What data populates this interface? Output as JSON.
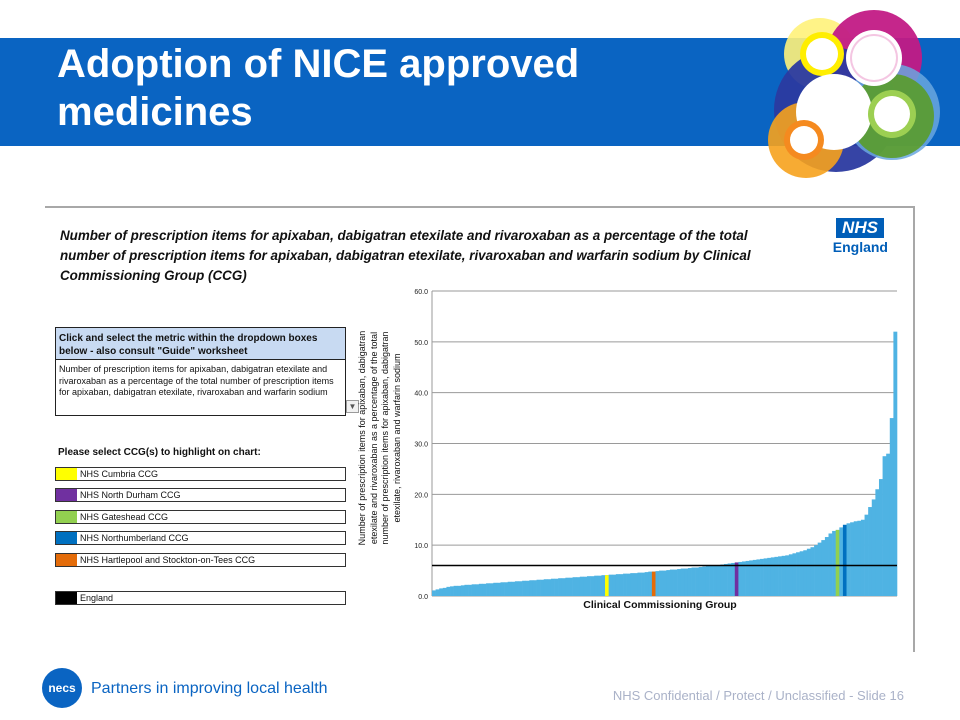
{
  "slide": {
    "title": "Adoption of NICE approved medicines",
    "footer_tagline": "Partners in improving local health",
    "footer_classification": "NHS Confidential / Protect / Unclassified - Slide 16",
    "footer_logo_text": "necs",
    "brand_color": "#0a64c2"
  },
  "panel": {
    "chart_title": "Number of prescription items for apixaban, dabigatran etexilate and rivaroxaban as a percentage of the total number of prescription items for apixaban, dabigatran etexilate, rivaroxaban and warfarin sodium by Clinical Commissioning Group (CCG)",
    "nhs_logo_box": "NHS",
    "nhs_logo_text": "England",
    "instructions": "Click and select the metric within the dropdown boxes below - also consult \"Guide\" worksheet",
    "dropdown_value": "Number of prescription items for apixaban, dabigatran etexilate and rivaroxaban as a percentage of the total number of prescription items for apixaban, dabigatran etexilate, rivaroxaban and warfarin sodium",
    "dropdown_arrow": "▼",
    "select_label": "Please select CCG(s) to highlight on chart:",
    "ccgs": [
      {
        "name": "NHS Cumbria CCG",
        "color": "#ffff00"
      },
      {
        "name": "NHS North Durham CCG",
        "color": "#7030a0"
      },
      {
        "name": "NHS Gateshead CCG",
        "color": "#92d050"
      },
      {
        "name": "NHS Northumberland CCG",
        "color": "#0070c0"
      },
      {
        "name": "NHS Hartlepool and Stockton-on-Tees CCG",
        "color": "#e46c0a"
      }
    ],
    "benchmark": {
      "name": "England",
      "color": "#000000"
    }
  },
  "chart_data": {
    "type": "bar",
    "title": "Number of prescription items for apixaban, dabigatran etexilate and rivaroxaban as a percentage of the total number of prescription items for apixaban, dabigatran etexilate, rivaroxaban and warfarin sodium by Clinical Commissioning Group (CCG)",
    "xlabel": "Clinical Commissioning Group",
    "ylabel": "Number of prescription items for apixaban, dabigatran etexilate and rivaroxaban as a percentage of the total number of prescription items for apixaban, dabigatran etexilate, rivaroxaban and warfarin sodium",
    "ylim": [
      0,
      60
    ],
    "yticks": [
      "0.0",
      "10.0",
      "20.0",
      "30.0",
      "40.0",
      "50.0",
      "60.0"
    ],
    "grid": true,
    "bar_color": "#4fb3e3",
    "values": [
      1.1,
      1.3,
      1.5,
      1.6,
      1.8,
      1.9,
      2.0,
      2.0,
      2.1,
      2.2,
      2.2,
      2.3,
      2.3,
      2.4,
      2.4,
      2.5,
      2.5,
      2.6,
      2.6,
      2.7,
      2.7,
      2.8,
      2.8,
      2.9,
      2.9,
      3.0,
      3.0,
      3.1,
      3.1,
      3.2,
      3.2,
      3.3,
      3.3,
      3.4,
      3.4,
      3.5,
      3.5,
      3.6,
      3.6,
      3.7,
      3.7,
      3.8,
      3.8,
      3.9,
      3.9,
      4.0,
      4.0,
      4.1,
      4.1,
      4.2,
      4.2,
      4.3,
      4.3,
      4.4,
      4.4,
      4.5,
      4.5,
      4.6,
      4.6,
      4.7,
      4.8,
      4.8,
      4.9,
      5.0,
      5.0,
      5.1,
      5.2,
      5.2,
      5.3,
      5.4,
      5.4,
      5.5,
      5.6,
      5.6,
      5.7,
      5.8,
      5.9,
      5.9,
      6.0,
      6.1,
      6.2,
      6.3,
      6.4,
      6.5,
      6.6,
      6.7,
      6.8,
      6.9,
      7.0,
      7.1,
      7.2,
      7.3,
      7.4,
      7.5,
      7.6,
      7.7,
      7.8,
      7.9,
      8.0,
      8.2,
      8.4,
      8.6,
      8.8,
      9.0,
      9.3,
      9.6,
      10.0,
      10.5,
      11.0,
      11.6,
      12.3,
      12.8,
      13.0,
      13.5,
      14.0,
      14.3,
      14.5,
      14.7,
      14.8,
      15.0,
      16.0,
      17.5,
      19.0,
      21.0,
      23.0,
      27.5,
      28.0,
      35.0,
      52.0
    ],
    "highlights": [
      {
        "name": "NHS Cumbria CCG",
        "index": 48,
        "color": "#ffff00"
      },
      {
        "name": "NHS Hartlepool and Stockton-on-Tees CCG",
        "index": 61,
        "color": "#e46c0a"
      },
      {
        "name": "NHS North Durham CCG",
        "index": 84,
        "color": "#7030a0"
      },
      {
        "name": "NHS Gateshead CCG",
        "index": 112,
        "color": "#92d050"
      },
      {
        "name": "NHS Northumberland CCG",
        "index": 114,
        "color": "#0070c0"
      }
    ],
    "reference_line": {
      "name": "England",
      "value": 6.0,
      "color": "#000000"
    }
  }
}
